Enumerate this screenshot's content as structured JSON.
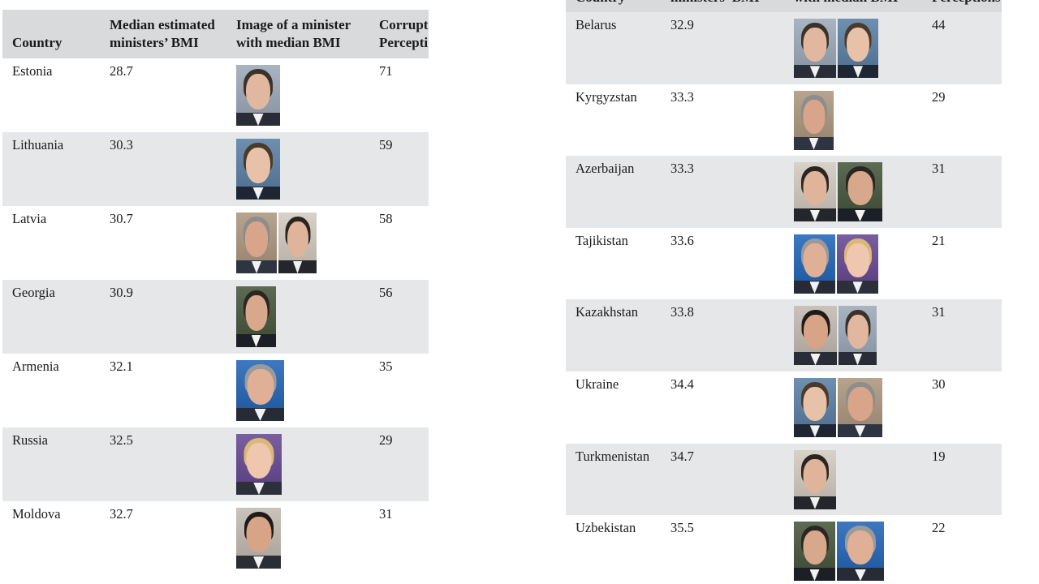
{
  "left_table": {
    "headers": [
      "Country",
      "Median estimated\nministers’ BMI",
      "Image of a minister\nwith median BMI",
      "Corrupt\nPercepti"
    ],
    "rows": [
      {
        "country": "Estonia",
        "bmi": "28.7",
        "cpi": "71",
        "faces": [
          "estonia-minister-photo"
        ]
      },
      {
        "country": "Lithuania",
        "bmi": "30.3",
        "cpi": "59",
        "faces": [
          "lithuania-minister-photo"
        ]
      },
      {
        "country": "Latvia",
        "bmi": "30.7",
        "cpi": "58",
        "faces": [
          "latvia-minister-photo-1",
          "latvia-minister-photo-2"
        ]
      },
      {
        "country": "Georgia",
        "bmi": "30.9",
        "cpi": "56",
        "faces": [
          "georgia-minister-photo"
        ]
      },
      {
        "country": "Armenia",
        "bmi": "32.1",
        "cpi": "35",
        "faces": [
          "armenia-minister-photo"
        ]
      },
      {
        "country": "Russia",
        "bmi": "32.5",
        "cpi": "29",
        "faces": [
          "russia-minister-photo"
        ]
      },
      {
        "country": "Moldova",
        "bmi": "32.7",
        "cpi": "31",
        "faces": [
          "moldova-minister-photo"
        ]
      }
    ]
  },
  "right_table": {
    "headers": [
      "Country",
      "ministers’ BMI",
      "with median BMI",
      "Perceptions"
    ],
    "rows": [
      {
        "country": "Belarus",
        "bmi": "32.9",
        "cpi": "44",
        "faces": [
          "belarus-minister-photo-1",
          "belarus-minister-photo-2"
        ]
      },
      {
        "country": "Kyrgyzstan",
        "bmi": "33.3",
        "cpi": "29",
        "faces": [
          "kyrgyzstan-minister-photo"
        ]
      },
      {
        "country": "Azerbaijan",
        "bmi": "33.3",
        "cpi": "31",
        "faces": [
          "azerbaijan-minister-photo-1",
          "azerbaijan-minister-photo-2"
        ]
      },
      {
        "country": "Tajikistan",
        "bmi": "33.6",
        "cpi": "21",
        "faces": [
          "tajikistan-minister-photo-1",
          "tajikistan-minister-photo-2"
        ]
      },
      {
        "country": "Kazakhstan",
        "bmi": "33.8",
        "cpi": "31",
        "faces": [
          "kazakhstan-minister-photo-1",
          "kazakhstan-minister-photo-2"
        ]
      },
      {
        "country": "Ukraine",
        "bmi": "34.4",
        "cpi": "30",
        "faces": [
          "ukraine-minister-photo-1",
          "ukraine-minister-photo-2"
        ]
      },
      {
        "country": "Turkmenistan",
        "bmi": "34.7",
        "cpi": "19",
        "faces": [
          "turkmenistan-minister-photo"
        ]
      },
      {
        "country": "Uzbekistan",
        "bmi": "35.5",
        "cpi": "22",
        "faces": [
          "uzbekistan-minister-photo-1",
          "uzbekistan-minister-photo-2"
        ]
      }
    ]
  },
  "colors": {
    "header_background": "#d9dadc",
    "row_shade": "#e6e7e9",
    "text": "#1a1a1a"
  }
}
